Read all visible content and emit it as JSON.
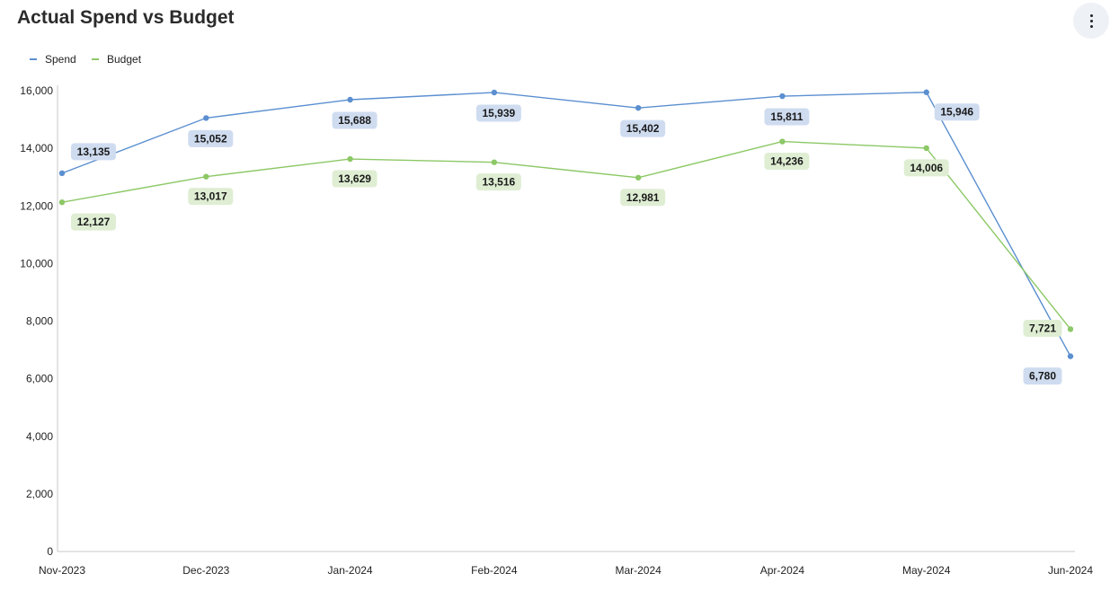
{
  "header": {
    "title": "Actual Spend vs Budget",
    "menu_icon": "more-vertical-icon"
  },
  "colors": {
    "spend": "#5b8fd0",
    "budget": "#8cc866",
    "spend_label_bg": "#cfdcf0",
    "budget_label_bg": "#dfeed3",
    "axis": "#c8c8c8"
  },
  "chart_data": {
    "type": "line",
    "title": "Actual Spend vs Budget",
    "xlabel": "",
    "ylabel": "",
    "categories": [
      "Nov-2023",
      "Dec-2023",
      "Jan-2024",
      "Feb-2024",
      "Mar-2024",
      "Apr-2024",
      "May-2024",
      "Jun-2024"
    ],
    "ylim": [
      0,
      16000
    ],
    "yticks": [
      0,
      2000,
      4000,
      6000,
      8000,
      10000,
      12000,
      14000,
      16000
    ],
    "ytick_labels": [
      "0",
      "2,000",
      "4,000",
      "6,000",
      "8,000",
      "10,000",
      "12,000",
      "14,000",
      "16,000"
    ],
    "grid": false,
    "legend_position": "top-left",
    "series": [
      {
        "name": "Spend",
        "values": [
          13135,
          15052,
          15688,
          15939,
          15402,
          15811,
          15946,
          6780
        ],
        "labels": [
          "13,135",
          "15,052",
          "15,688",
          "15,939",
          "15,402",
          "15,811",
          "15,946",
          "6,780"
        ]
      },
      {
        "name": "Budget",
        "values": [
          12127,
          13017,
          13629,
          13516,
          12981,
          14236,
          14006,
          7721
        ],
        "labels": [
          "12,127",
          "13,017",
          "13,629",
          "13,516",
          "12,981",
          "14,236",
          "14,006",
          "7,721"
        ]
      }
    ]
  }
}
